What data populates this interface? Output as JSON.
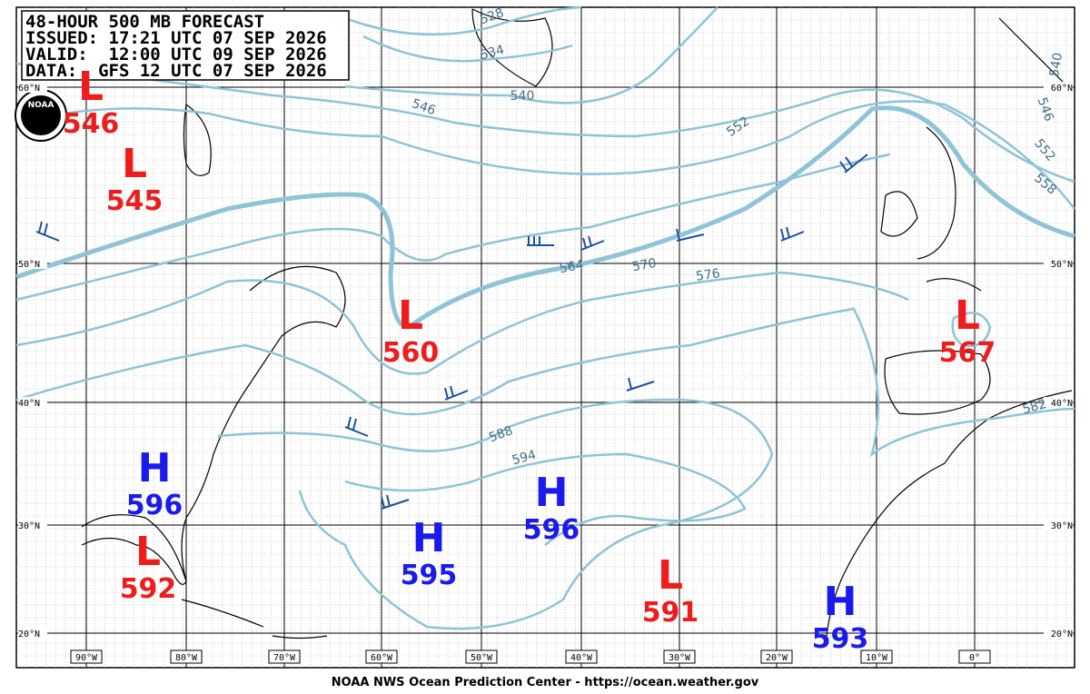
{
  "header": {
    "title": "48-HOUR 500 MB FORECAST",
    "issued": "ISSUED: 17:21 UTC 07 SEP 2026",
    "valid": "VALID:  12:00 UTC 09 SEP 2026",
    "data": "DATA:  GFS 12 UTC 07 SEP 2026"
  },
  "logo": "NOAA",
  "centers": [
    {
      "type": "L",
      "value": "546"
    },
    {
      "type": "L",
      "value": "545"
    },
    {
      "type": "H",
      "value": "596"
    },
    {
      "type": "L",
      "value": "592"
    },
    {
      "type": "L",
      "value": "560"
    },
    {
      "type": "H",
      "value": "595"
    },
    {
      "type": "H",
      "value": "596"
    },
    {
      "type": "L",
      "value": "591"
    },
    {
      "type": "H",
      "value": "593"
    },
    {
      "type": "L",
      "value": "567"
    }
  ],
  "contour_labels": [
    "528",
    "534",
    "540",
    "546",
    "552",
    "558",
    "564",
    "570",
    "576",
    "588",
    "594",
    "582",
    "540",
    "546",
    "552"
  ],
  "lat_labels": [
    "60°N",
    "50°N",
    "40°N",
    "30°N",
    "20°N"
  ],
  "lon_labels": [
    "90°W",
    "80°W",
    "70°W",
    "60°W",
    "50°W",
    "40°W",
    "30°W",
    "20°W",
    "10°W",
    "0°"
  ],
  "footer": "NOAA NWS Ocean Prediction Center - https://ocean.weather.gov"
}
